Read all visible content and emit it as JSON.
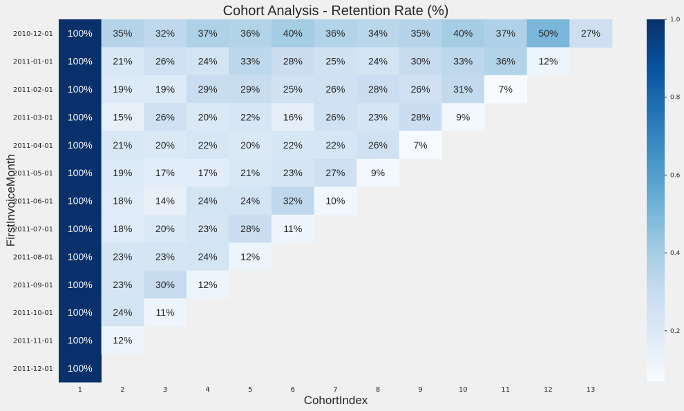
{
  "chart_data": {
    "type": "heatmap",
    "title": "Cohort Analysis - Retention Rate (%)",
    "xlabel": "CohortIndex",
    "ylabel": "FirstInvoiceMonth",
    "x_categories": [
      "1",
      "2",
      "3",
      "4",
      "5",
      "6",
      "7",
      "8",
      "9",
      "10",
      "11",
      "12",
      "13"
    ],
    "y_categories": [
      "2010-12-01",
      "2011-01-01",
      "2011-02-01",
      "2011-03-01",
      "2011-04-01",
      "2011-05-01",
      "2011-06-01",
      "2011-07-01",
      "2011-08-01",
      "2011-09-01",
      "2011-10-01",
      "2011-11-01",
      "2011-12-01"
    ],
    "values": [
      [
        100,
        35,
        32,
        37,
        36,
        40,
        36,
        34,
        35,
        40,
        37,
        50,
        27
      ],
      [
        100,
        21,
        26,
        24,
        33,
        28,
        25,
        24,
        30,
        33,
        36,
        12
      ],
      [
        100,
        19,
        19,
        29,
        29,
        25,
        26,
        28,
        26,
        31,
        7
      ],
      [
        100,
        15,
        26,
        20,
        22,
        16,
        26,
        23,
        28,
        9
      ],
      [
        100,
        21,
        20,
        22,
        20,
        22,
        22,
        26,
        7
      ],
      [
        100,
        19,
        17,
        17,
        21,
        23,
        27,
        9
      ],
      [
        100,
        18,
        14,
        24,
        24,
        32,
        10
      ],
      [
        100,
        18,
        20,
        23,
        28,
        11
      ],
      [
        100,
        23,
        23,
        24,
        12
      ],
      [
        100,
        23,
        30,
        12
      ],
      [
        100,
        24,
        11
      ],
      [
        100,
        12
      ],
      [
        100
      ]
    ],
    "value_format": "percent",
    "colormap": "Blues",
    "vmin": 0.07,
    "vmax": 1.0,
    "colorbar_ticks": [
      "1.0",
      "0.8",
      "0.6",
      "0.4",
      "0.2"
    ],
    "grid": false
  }
}
